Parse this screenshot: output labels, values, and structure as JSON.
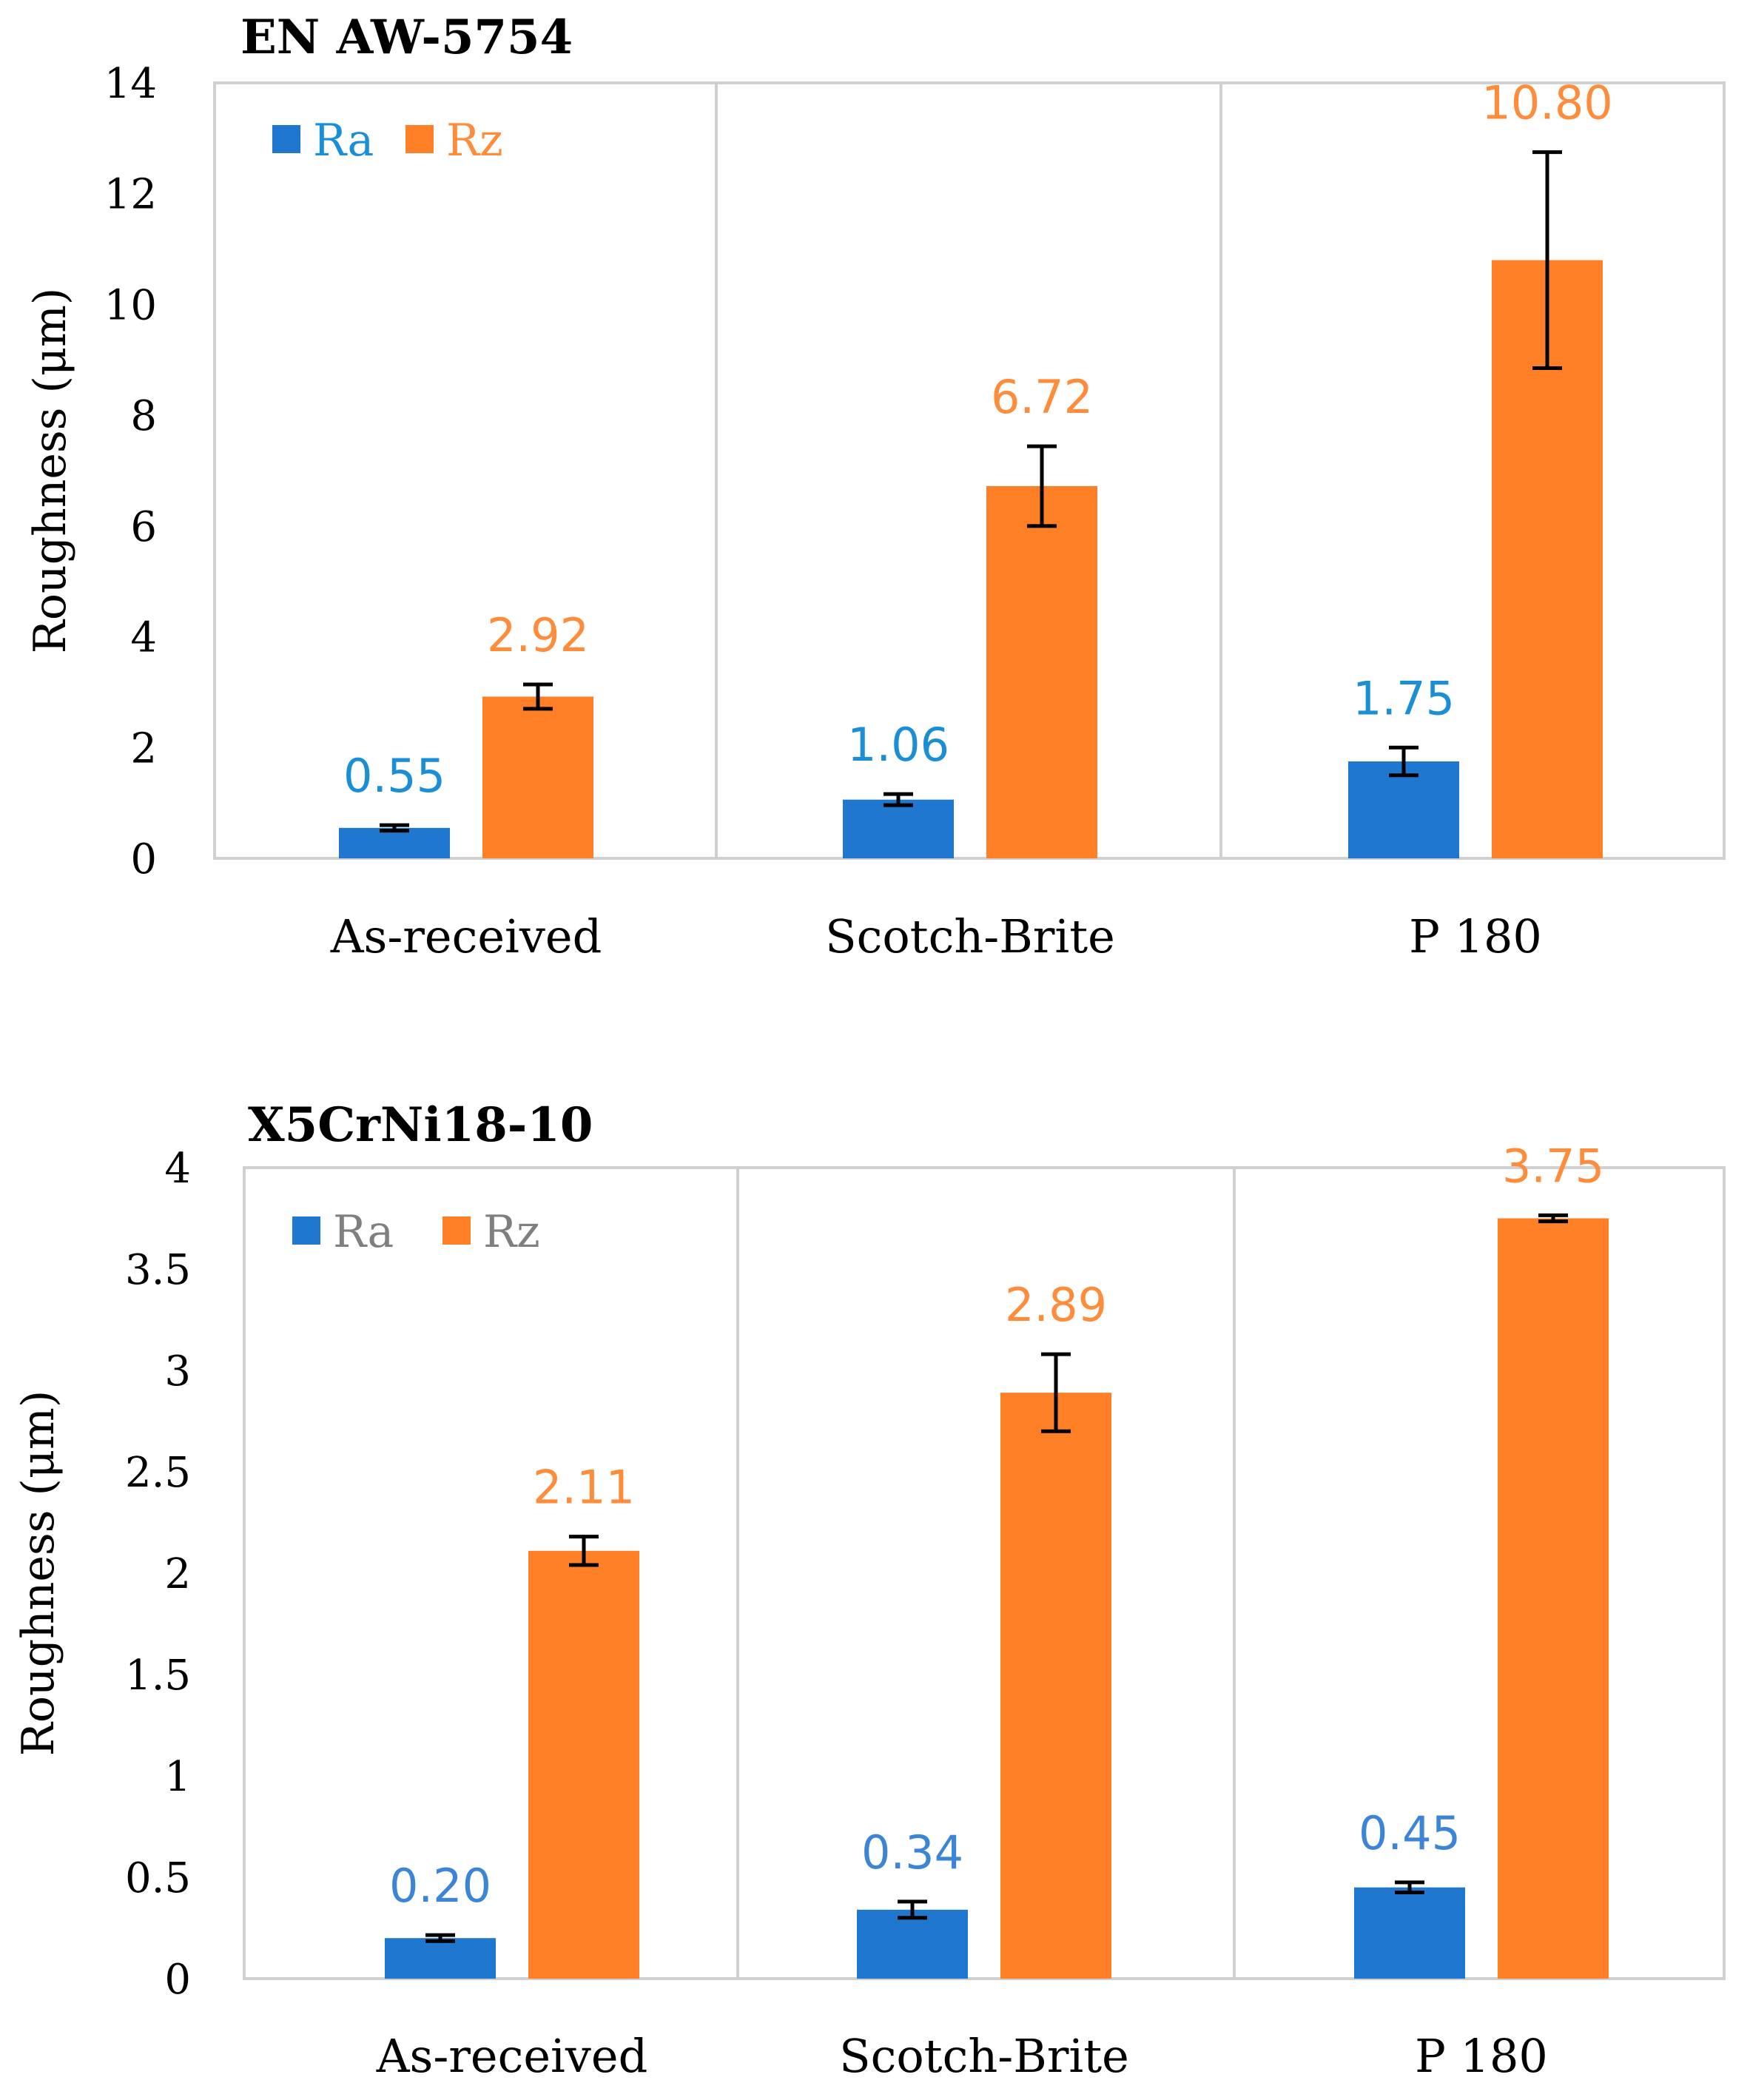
{
  "chart_data": [
    {
      "type": "bar",
      "title": "EN AW-5754",
      "categories": [
        "As-received",
        "Scotch-Brite",
        "P 180"
      ],
      "series": [
        {
          "name": "Ra",
          "color": "#1F77D0",
          "label_color": "#1A8FD6",
          "values": [
            0.55,
            1.06,
            1.75
          ],
          "errors": [
            0.05,
            0.1,
            0.25
          ],
          "labels": [
            "0.55",
            "1.06",
            "1.75"
          ]
        },
        {
          "name": "Rz",
          "color": "#FF7F27",
          "label_color": "#FF8C3A",
          "values": [
            2.92,
            6.72,
            10.8
          ],
          "errors": [
            0.22,
            0.72,
            1.95
          ],
          "labels": [
            "2.92",
            "6.72",
            "10.80"
          ]
        }
      ],
      "ylabel": "Roughness (μm)",
      "ylim": [
        0,
        14
      ],
      "yticks": [
        "0",
        "2",
        "4",
        "6",
        "8",
        "10",
        "12",
        "14"
      ],
      "ytick_values": [
        0,
        2,
        4,
        6,
        8,
        10,
        12,
        14
      ],
      "grid": "vertical category separators",
      "legend": "top-left"
    },
    {
      "type": "bar",
      "title": "X5CrNi18-10",
      "categories": [
        "As-received",
        "Scotch-Brite",
        "P 180"
      ],
      "series": [
        {
          "name": "Ra",
          "color": "#1F77D0",
          "label_color": "#3C84D6",
          "legend_text_color": "#7F7F7F",
          "values": [
            0.2,
            0.34,
            0.45
          ],
          "errors": [
            0.015,
            0.04,
            0.025
          ],
          "labels": [
            "0.20",
            "0.34",
            "0.45"
          ]
        },
        {
          "name": "Rz",
          "color": "#FF7F27",
          "label_color": "#FF8C3A",
          "legend_text_color": "#7F7F7F",
          "values": [
            2.11,
            2.89,
            3.75
          ],
          "errors": [
            0.07,
            0.19,
            0.015
          ],
          "labels": [
            "2.11",
            "2.89",
            "3.75"
          ]
        }
      ],
      "ylabel": "Roughness (μm)",
      "ylim": [
        0,
        4
      ],
      "yticks": [
        "0",
        "0.5",
        "1",
        "1.5",
        "2",
        "2.5",
        "3",
        "3.5",
        "4"
      ],
      "ytick_values": [
        0,
        0.5,
        1,
        1.5,
        2,
        2.5,
        3,
        3.5,
        4
      ],
      "grid": "vertical category separators",
      "legend": "top-left"
    }
  ]
}
